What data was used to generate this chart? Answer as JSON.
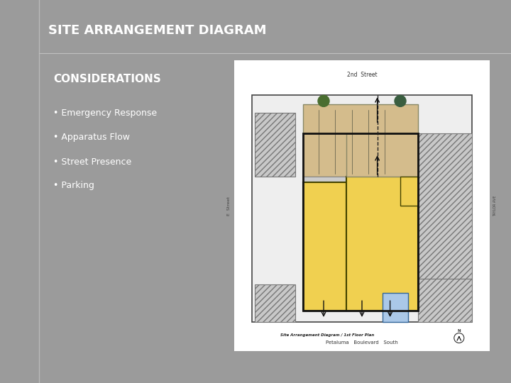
{
  "title": "SITE ARRANGEMENT DIAGRAM",
  "background_color": "#9b9b9b",
  "title_color": "#ffffff",
  "title_fontsize": 13,
  "considerations_title": "CONSIDERATIONS",
  "considerations_color": "#ffffff",
  "considerations_fontsize": 11,
  "bullet_items": [
    "Emergency Response",
    "Apparatus Flow",
    "Street Presence",
    "Parking"
  ],
  "bullet_color": "#ffffff",
  "bullet_fontsize": 9,
  "slide_bg": "#9b9b9b",
  "white_panel_color": "#ffffff",
  "line_color": "#b0b0b0"
}
